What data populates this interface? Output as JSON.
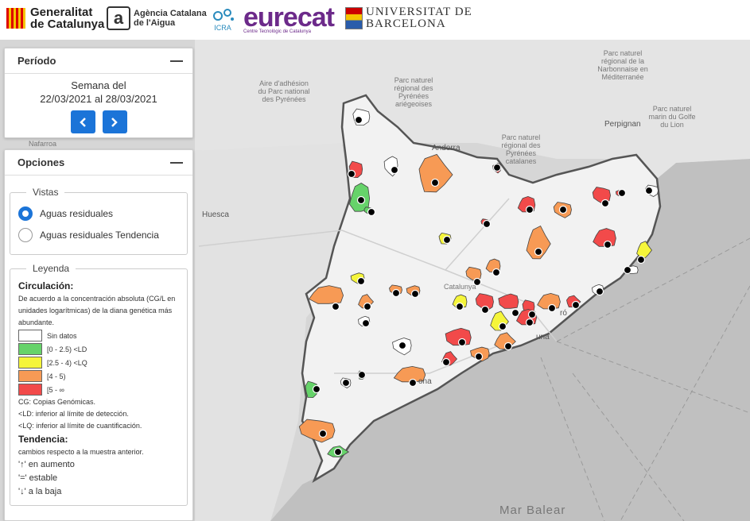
{
  "header": {
    "gencat": [
      "Generalitat",
      "de Catalunya"
    ],
    "aca": [
      "Agència Catalana",
      "de l'Aigua"
    ],
    "icra": "ICRA",
    "eurecat": "eurecat",
    "eurecat_sub": "Centre Tecnològic de Catalunya",
    "ub": [
      "UNIVERSITAT DE",
      "BARCELONA"
    ]
  },
  "periodo": {
    "title": "Período",
    "week_label": "Semana del",
    "week_range": "22/03/2021 al 28/03/2021",
    "prev_icon": "chevron-left-icon",
    "next_icon": "chevron-right-icon"
  },
  "opciones": {
    "title": "Opciones",
    "vistas": {
      "legend": "Vistas",
      "options": [
        {
          "label": "Aguas residuales",
          "selected": true
        },
        {
          "label": "Aguas residuales Tendencia",
          "selected": false
        }
      ]
    },
    "leyenda": {
      "legend": "Leyenda",
      "circ_title": "Circulación:",
      "circ_desc": "De acuerdo a la concentración absoluta (CG/L en unidades logarítmicas) de la diana genética más abundante.",
      "classes": [
        {
          "label": "Sin datos",
          "color": "#ffffff"
        },
        {
          "label": "[0 - 2.5) <LD",
          "color": "#66d36a"
        },
        {
          "label": "[2.5 - 4) <LQ",
          "color": "#f5f53a"
        },
        {
          "label": "[4 - 5)",
          "color": "#f79a55"
        },
        {
          "label": "[5 - ∞",
          "color": "#f24a4a"
        }
      ],
      "notes": [
        "CG: Copias Genómicas.",
        "<LD: inferior al límite de detección.",
        "<LQ: inferior al límite de cuantificación."
      ],
      "trend_title": "Tendencia:",
      "trend_desc": "cambios respecto a la muestra anterior.",
      "trends": [
        "'↑' en aumento",
        "'=' estable",
        "'↓' a la baja"
      ]
    }
  },
  "map": {
    "labels": {
      "andorra": "Andorra",
      "huesca": "Huesca",
      "perpignan": "Perpignan",
      "nafarroa": "Nafarroa",
      "catalunya": "Catalunya",
      "mar_balear": "Mar Balear",
      "aire_adhesion": "Aire d'adhésion du Parc national des Pyrénées",
      "pn_pyrenees": "Parc naturel régional des Pyrénées ariégeoises",
      "pn_catalanes": "Parc naturel régional des Pyrénées catalanes",
      "pn_narbonnaise": "Parc naturel régional de la Narbonnaise en Méditerranée",
      "pn_golfe": "Parc naturel marin du Golfe du Lion",
      "barcelona_partial": "una",
      "tarragona_partial": "ona",
      "mataro_partial": "ró"
    },
    "sea_color": "#bcbcbc",
    "land_color": "#eeeeee",
    "region_fill": "#f2f2f2",
    "border_color": "#555555",
    "marker_color": "#000000"
  }
}
